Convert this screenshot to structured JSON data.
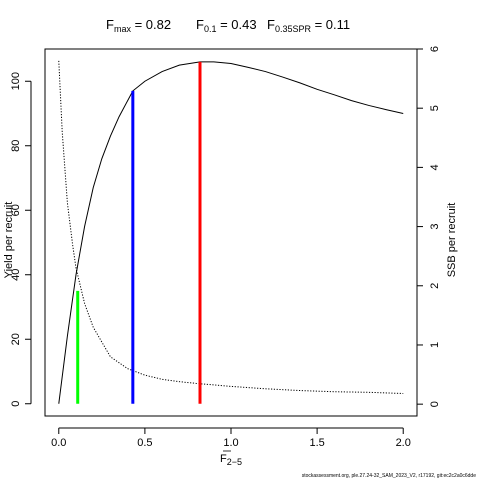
{
  "chart_data": {
    "type": "line",
    "title_parts": {
      "fmax_label": "F",
      "fmax_sub": "max",
      "fmax_value": " = 0.82",
      "f01_label": "F",
      "f01_sub": "0.1",
      "f01_value": " = 0.43",
      "fspr_label": "F",
      "fspr_sub": "0.35SPR",
      "fspr_value": " = 0.11"
    },
    "xlabel_base": "F",
    "xlabel_sub": "2−5",
    "ylabel_left": "Yield per recruit",
    "ylabel_right": "SSB per recruit",
    "xlim": [
      -0.08,
      2.08
    ],
    "ylim_left": [
      -3.8,
      110
    ],
    "ylim_right": [
      -0.2,
      6.0
    ],
    "x_ticks": [
      0,
      0.5,
      1.0,
      1.5,
      2.0
    ],
    "x_tick_labels": [
      "0.0",
      "0.5",
      "1.0",
      "1.5",
      "2.0"
    ],
    "y_left_ticks": [
      0,
      20,
      40,
      60,
      80,
      100
    ],
    "y_left_tick_labels": [
      "0",
      "20",
      "40",
      "60",
      "80",
      "100"
    ],
    "y_right_ticks": [
      0,
      1,
      2,
      3,
      4,
      5,
      6
    ],
    "y_right_tick_labels": [
      "0",
      "1",
      "2",
      "3",
      "4",
      "5",
      "6"
    ],
    "series": [
      {
        "style": "solid",
        "axis": "left",
        "points": [
          [
            0,
            0
          ],
          [
            0.05,
            21
          ],
          [
            0.1,
            40
          ],
          [
            0.15,
            55
          ],
          [
            0.2,
            67
          ],
          [
            0.25,
            76
          ],
          [
            0.3,
            83
          ],
          [
            0.35,
            89
          ],
          [
            0.4,
            94
          ],
          [
            0.43,
            97
          ],
          [
            0.5,
            100
          ],
          [
            0.6,
            103
          ],
          [
            0.7,
            105
          ],
          [
            0.82,
            106
          ],
          [
            0.9,
            106
          ],
          [
            1.0,
            105.5
          ],
          [
            1.1,
            104.3
          ],
          [
            1.2,
            103
          ],
          [
            1.3,
            101.3
          ],
          [
            1.4,
            99.5
          ],
          [
            1.5,
            97.5
          ],
          [
            1.6,
            95.8
          ],
          [
            1.7,
            94
          ],
          [
            1.8,
            92.5
          ],
          [
            1.9,
            91.2
          ],
          [
            2.0,
            90
          ]
        ]
      },
      {
        "style": "dotted",
        "axis": "right",
        "points": [
          [
            0,
            5.8
          ],
          [
            0.02,
            4.6
          ],
          [
            0.05,
            3.4
          ],
          [
            0.08,
            2.7
          ],
          [
            0.1,
            2.3
          ],
          [
            0.15,
            1.7
          ],
          [
            0.2,
            1.3
          ],
          [
            0.3,
            0.8
          ],
          [
            0.4,
            0.6
          ],
          [
            0.5,
            0.49
          ],
          [
            0.6,
            0.42
          ],
          [
            0.7,
            0.38
          ],
          [
            0.8,
            0.35
          ],
          [
            1.0,
            0.3
          ],
          [
            1.2,
            0.26
          ],
          [
            1.4,
            0.23
          ],
          [
            1.6,
            0.21
          ],
          [
            1.8,
            0.2
          ],
          [
            2.0,
            0.18
          ]
        ]
      }
    ],
    "reference_lines": [
      {
        "x": 0.11,
        "y_top": 35,
        "color": "#00ff00"
      },
      {
        "x": 0.43,
        "y_top": 97,
        "color": "#0000ff"
      },
      {
        "x": 0.82,
        "y_top": 106,
        "color": "#ff0000"
      }
    ],
    "grid": false,
    "footer_text": "stockassessment.org, ple.27.24-32_SAM_2023_V2, r17192, git:ec2c2a0c6dde"
  }
}
